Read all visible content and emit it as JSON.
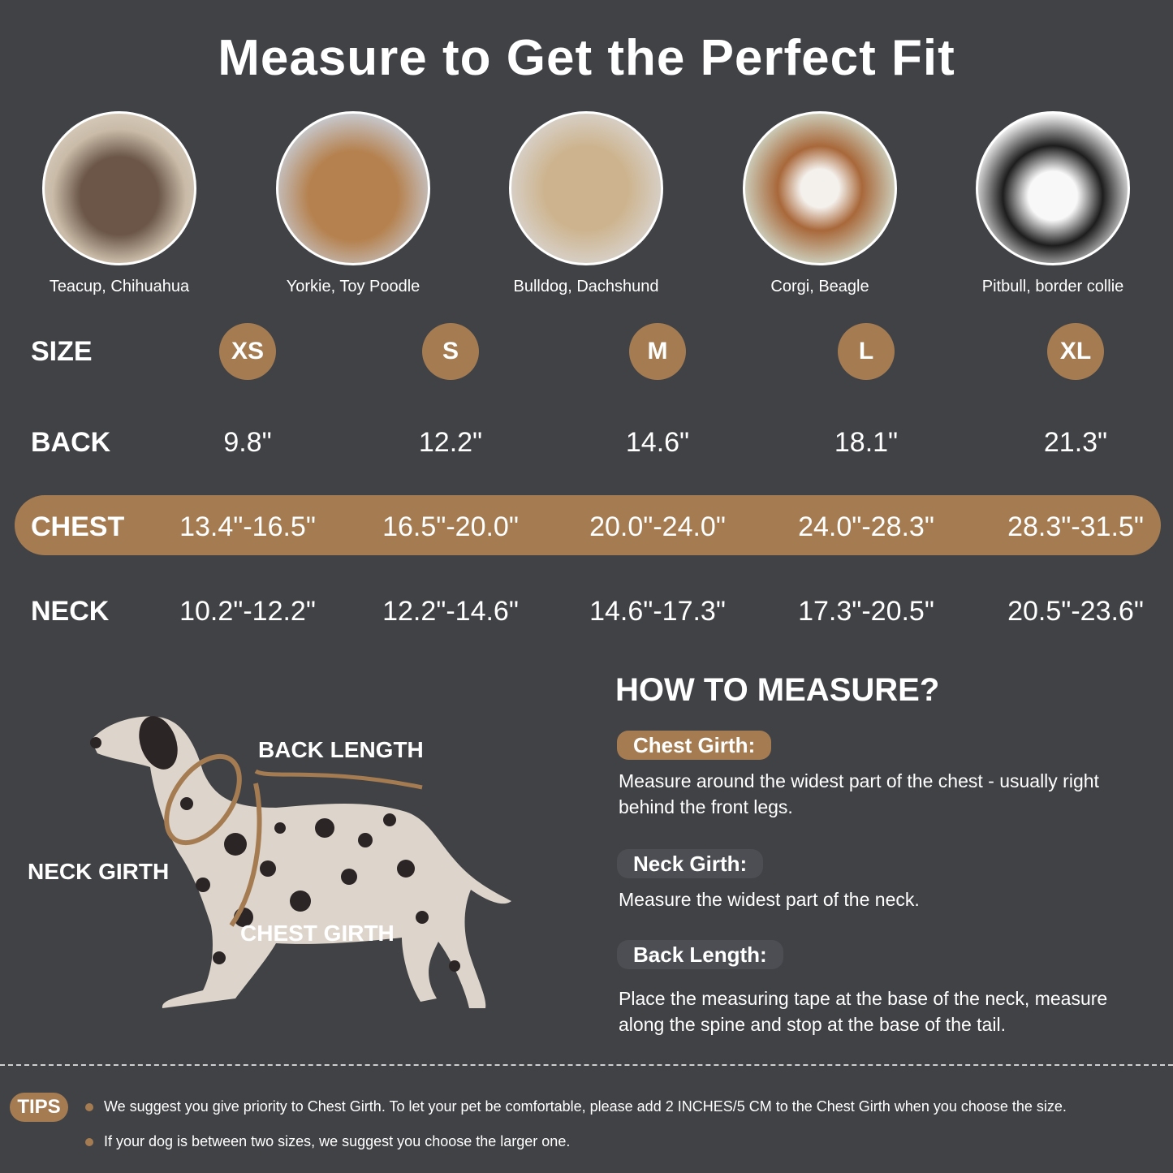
{
  "title": "Measure to Get the Perfect Fit",
  "colors": {
    "background": "#414246",
    "accent": "#a57c52",
    "text": "#ffffff"
  },
  "breeds": [
    {
      "caption": "Teacup, Chihuahua",
      "photo": "chihuahua-photo"
    },
    {
      "caption": "Yorkie, Toy Poodle",
      "photo": "yorkie-photo"
    },
    {
      "caption": "Bulldog, Dachshund",
      "photo": "pug-photo"
    },
    {
      "caption": "Corgi, Beagle",
      "photo": "beagle-photo"
    },
    {
      "caption": "Pitbull, border collie",
      "photo": "border-collie-photo"
    }
  ],
  "table": {
    "size_label": "SIZE",
    "sizes": [
      "XS",
      "S",
      "M",
      "L",
      "XL"
    ],
    "back_label": "BACK",
    "back": [
      "9.8\"",
      "12.2\"",
      "14.6\"",
      "18.1\"",
      "21.3\""
    ],
    "chest_label": "CHEST",
    "chest": [
      "13.4\"-16.5\"",
      "16.5\"-20.0\"",
      "20.0\"-24.0\"",
      "24.0\"-28.3\"",
      "28.3\"-31.5\""
    ],
    "neck_label": "NECK",
    "neck": [
      "10.2\"-12.2\"",
      "12.2\"-14.6\"",
      "14.6\"-17.3\"",
      "17.3\"-20.5\"",
      "20.5\"-23.6\""
    ]
  },
  "diagram": {
    "back_length": "BACK LENGTH",
    "neck_girth": "NECK GIRTH",
    "chest_girth": "CHEST GIRTH"
  },
  "how_to": {
    "title": "HOW TO MEASURE?",
    "items": [
      {
        "label": "Chest Girth:",
        "text": "Measure around the widest part of the chest - usually right behind the front legs."
      },
      {
        "label": "Neck Girth:",
        "text": "Measure the widest part of the neck."
      },
      {
        "label": "Back Length:",
        "text": "Place the measuring tape at the base of the neck, measure along the spine and stop at the base of the tail."
      }
    ]
  },
  "tips": {
    "label": "TIPS",
    "items": [
      "We suggest you give priority to Chest Girth. To let your pet be comfortable, please add 2 INCHES/5 CM to the Chest Girth when you choose the size.",
      "If your dog is between two sizes, we suggest you choose the larger one."
    ]
  }
}
